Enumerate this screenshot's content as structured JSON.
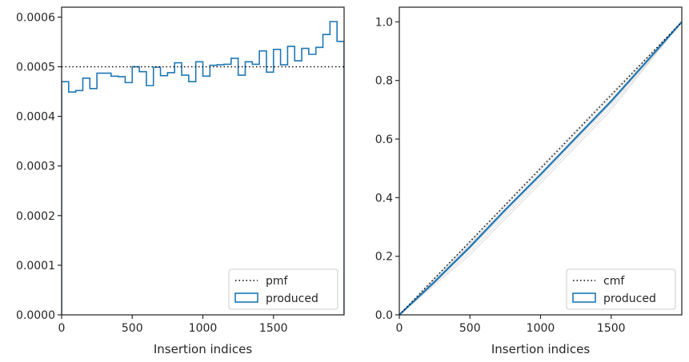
{
  "chart_data": [
    {
      "type": "histogram-step",
      "xlabel": "Insertion indices",
      "ylabel": "",
      "xlim": [
        0,
        2000
      ],
      "ylim": [
        0,
        0.00062
      ],
      "xticks": [
        0,
        500,
        1000,
        1500
      ],
      "xtick_labels": [
        "0",
        "500",
        "1000",
        "1500"
      ],
      "yticks": [
        0,
        0.0001,
        0.0002,
        0.0003,
        0.0004,
        0.0005,
        0.0006
      ],
      "ytick_labels": [
        "0.0000",
        "0.0001",
        "0.0002",
        "0.0003",
        "0.0004",
        "0.0005",
        "0.0006"
      ],
      "grid": false,
      "legend_position": "lower-right",
      "reference_line": {
        "name": "pmf",
        "y": 0.0005,
        "style": "dotted",
        "color": "#000000"
      },
      "series": [
        {
          "name": "produced",
          "color": "#1f77b4",
          "bin_edges": [
            0,
            50,
            100,
            150,
            200,
            250,
            300,
            350,
            400,
            450,
            500,
            550,
            600,
            650,
            700,
            750,
            800,
            850,
            900,
            950,
            1000,
            1050,
            1100,
            1150,
            1200,
            1250,
            1300,
            1350,
            1400,
            1450,
            1500,
            1550,
            1600,
            1650,
            1700,
            1750,
            1800,
            1850,
            1900,
            1950,
            2000
          ],
          "values": [
            0.00047,
            0.000449,
            0.000452,
            0.000477,
            0.000456,
            0.000487,
            0.000487,
            0.000481,
            0.00048,
            0.000468,
            0.0005,
            0.00049,
            0.000462,
            0.000499,
            0.000482,
            0.000488,
            0.000508,
            0.000483,
            0.00047,
            0.00051,
            0.000481,
            0.000503,
            0.000504,
            0.000505,
            0.000517,
            0.000483,
            0.00051,
            0.000505,
            0.000532,
            0.000489,
            0.000535,
            0.000504,
            0.000541,
            0.000512,
            0.000537,
            0.000525,
            0.000539,
            0.000565,
            0.000591,
            0.000551
          ]
        }
      ]
    },
    {
      "type": "line",
      "xlabel": "Insertion indices",
      "ylabel": "",
      "xlim": [
        0,
        2000
      ],
      "ylim": [
        0,
        1.05
      ],
      "xticks": [
        0,
        500,
        1000,
        1500
      ],
      "xtick_labels": [
        "0",
        "500",
        "1000",
        "1500"
      ],
      "yticks": [
        0,
        0.2,
        0.4,
        0.6,
        0.8,
        1.0
      ],
      "ytick_labels": [
        "0.0",
        "0.2",
        "0.4",
        "0.6",
        "0.8",
        "1.0"
      ],
      "grid": false,
      "legend_position": "lower-right",
      "reference_line": {
        "name": "cmf",
        "points": [
          [
            0,
            0
          ],
          [
            2000,
            1.0
          ]
        ],
        "style": "dotted",
        "color": "#000000"
      },
      "series": [
        {
          "name": "produced",
          "color": "#1f77b4",
          "x": [
            0,
            250,
            500,
            750,
            1000,
            1250,
            1500,
            1750,
            2000
          ],
          "y": [
            0,
            0.113,
            0.232,
            0.358,
            0.479,
            0.604,
            0.729,
            0.864,
            1.0
          ]
        }
      ],
      "background_series": [
        {
          "color": "#d3d3d3",
          "x": [
            0,
            500,
            1000,
            1500,
            2000
          ],
          "y": [
            0,
            0.245,
            0.495,
            0.745,
            1.0
          ]
        },
        {
          "color": "#d3d3d3",
          "x": [
            0,
            500,
            1000,
            1500,
            2000
          ],
          "y": [
            0,
            0.24,
            0.485,
            0.735,
            1.0
          ]
        },
        {
          "color": "#d3d3d3",
          "x": [
            0,
            500,
            1000,
            1500,
            2000
          ],
          "y": [
            0,
            0.225,
            0.47,
            0.72,
            1.0
          ]
        },
        {
          "color": "#d3d3d3",
          "x": [
            0,
            500,
            1000,
            1500,
            2000
          ],
          "y": [
            0,
            0.215,
            0.46,
            0.71,
            1.0
          ]
        },
        {
          "color": "#d3d3d3",
          "x": [
            0,
            500,
            1000,
            1500,
            2000
          ],
          "y": [
            0,
            0.205,
            0.45,
            0.7,
            1.0
          ]
        },
        {
          "color": "#d3d3d3",
          "x": [
            0,
            500,
            1000,
            1500,
            2000
          ],
          "y": [
            0,
            0.25,
            0.505,
            0.755,
            1.0
          ]
        }
      ]
    }
  ]
}
